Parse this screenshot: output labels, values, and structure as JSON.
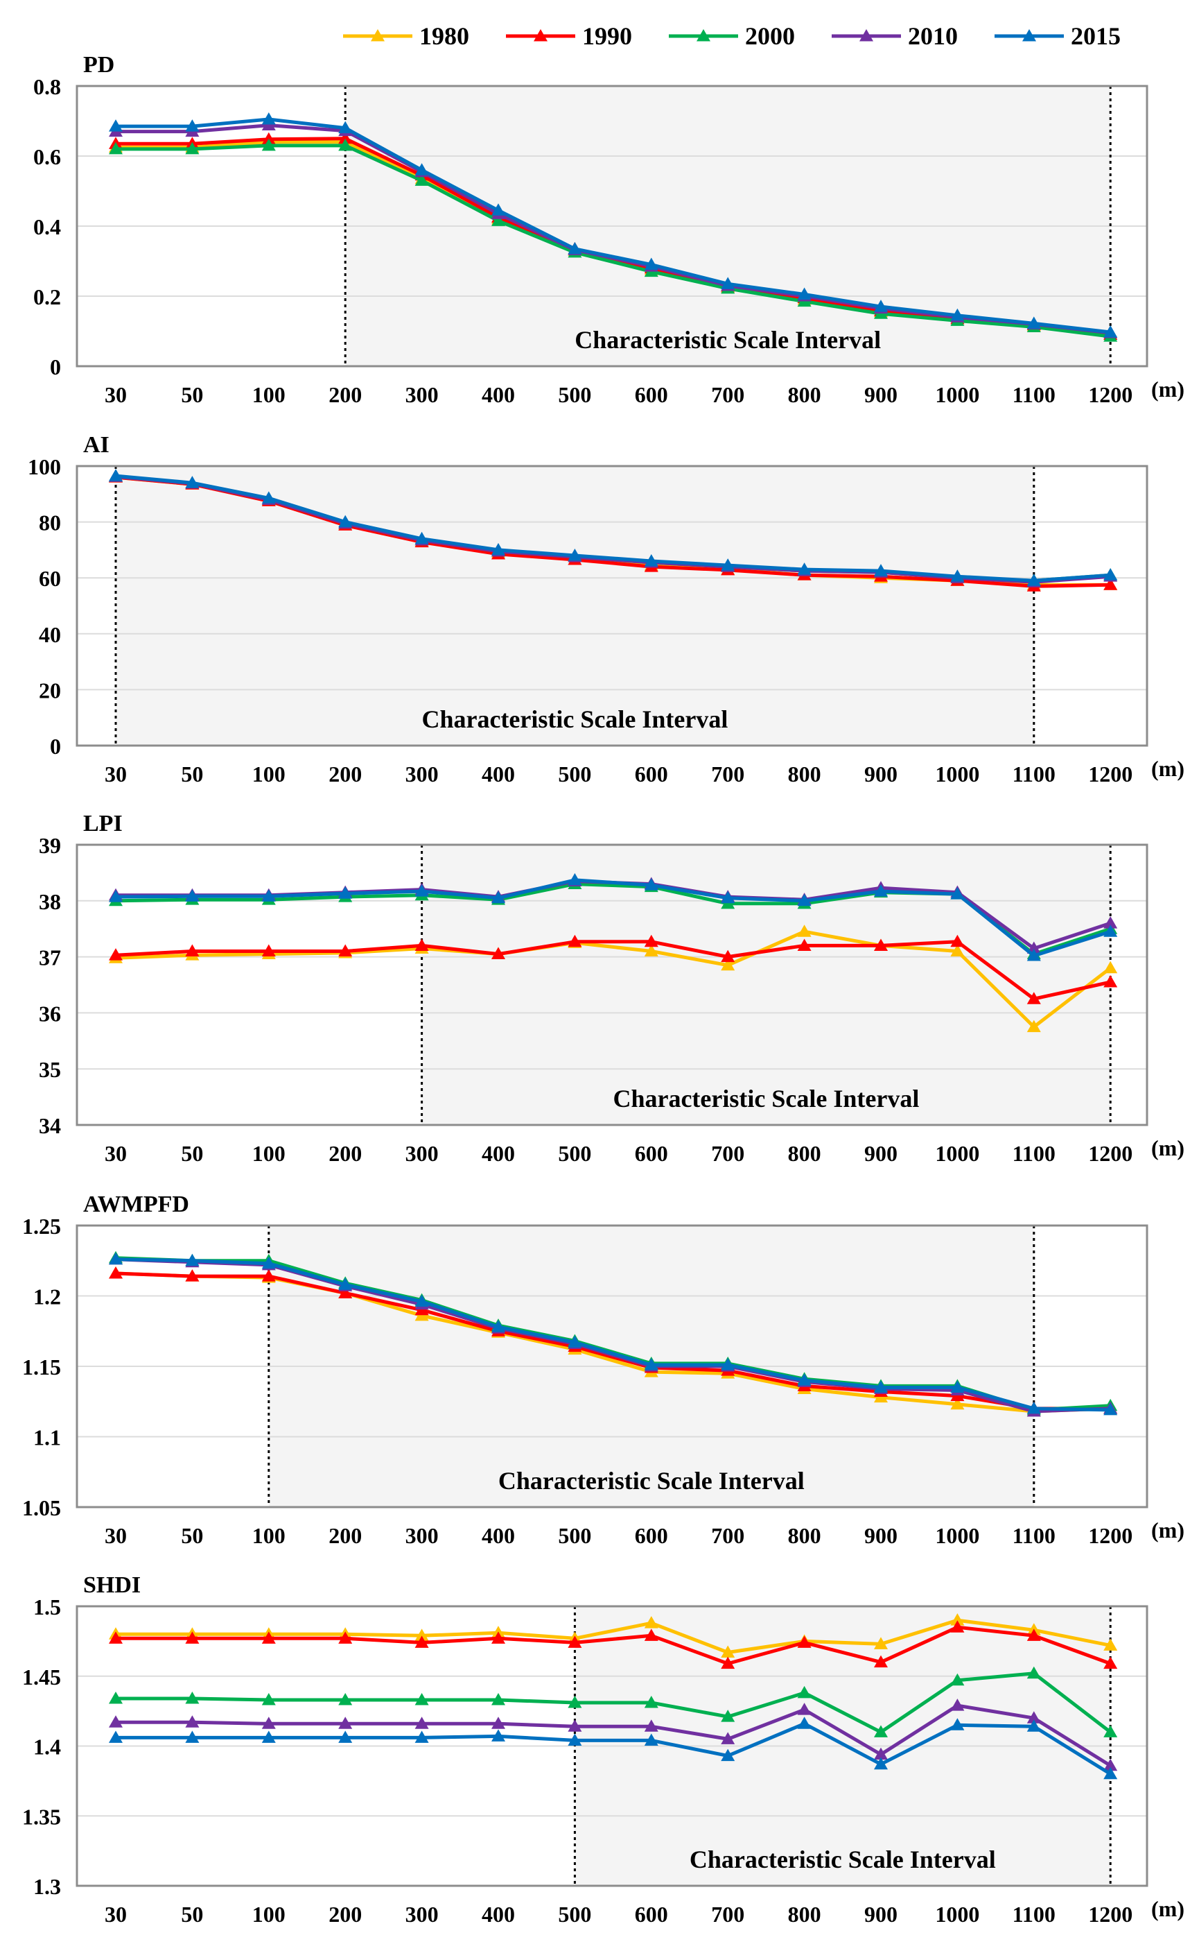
{
  "legend": [
    {
      "name": "1980",
      "color": "#ffc000"
    },
    {
      "name": "1990",
      "color": "#ff0000"
    },
    {
      "name": "2000",
      "color": "#00b050"
    },
    {
      "name": "2010",
      "color": "#7030a0"
    },
    {
      "name": "2015",
      "color": "#0070c0"
    }
  ],
  "chart_data": [
    {
      "type": "line",
      "title": "PD",
      "xunit": "(m)",
      "categories": [
        "30",
        "50",
        "100",
        "200",
        "300",
        "400",
        "500",
        "600",
        "700",
        "800",
        "900",
        "1000",
        "1100",
        "1200"
      ],
      "ylim": [
        0,
        0.8
      ],
      "yticks": [
        0,
        0.2,
        0.4,
        0.6,
        0.8
      ],
      "ytick_labels": [
        "0",
        "0.2",
        "0.4",
        "0.6",
        "0.8"
      ],
      "interval": {
        "label": "Characteristic Scale Interval",
        "start": "200",
        "end": "1200"
      },
      "series": [
        {
          "name": "1980",
          "values": [
            0.625,
            0.625,
            0.64,
            0.64,
            0.535,
            0.42,
            0.33,
            0.275,
            0.225,
            0.19,
            0.155,
            0.135,
            0.115,
            0.09
          ]
        },
        {
          "name": "1990",
          "values": [
            0.635,
            0.635,
            0.648,
            0.65,
            0.545,
            0.425,
            0.335,
            0.28,
            0.228,
            0.195,
            0.158,
            0.135,
            0.118,
            0.09
          ]
        },
        {
          "name": "2000",
          "values": [
            0.62,
            0.62,
            0.63,
            0.63,
            0.53,
            0.415,
            0.325,
            0.27,
            0.222,
            0.185,
            0.15,
            0.13,
            0.112,
            0.085
          ]
        },
        {
          "name": "2010",
          "values": [
            0.67,
            0.67,
            0.688,
            0.672,
            0.555,
            0.435,
            0.332,
            0.285,
            0.23,
            0.2,
            0.165,
            0.14,
            0.12,
            0.095
          ]
        },
        {
          "name": "2015",
          "values": [
            0.685,
            0.685,
            0.705,
            0.68,
            0.56,
            0.445,
            0.335,
            0.29,
            0.235,
            0.205,
            0.17,
            0.145,
            0.122,
            0.097
          ]
        }
      ]
    },
    {
      "type": "line",
      "title": "AI",
      "xunit": "(m)",
      "categories": [
        "30",
        "50",
        "100",
        "200",
        "300",
        "400",
        "500",
        "600",
        "700",
        "800",
        "900",
        "1000",
        "1100",
        "1200"
      ],
      "ylim": [
        0,
        100
      ],
      "yticks": [
        0,
        20,
        40,
        60,
        80,
        100
      ],
      "ytick_labels": [
        "0",
        "20",
        "40",
        "60",
        "80",
        "100"
      ],
      "interval": {
        "label": "Characteristic Scale Interval",
        "start": "30",
        "end": "1100"
      },
      "series": [
        {
          "name": "1980",
          "values": [
            96,
            93.5,
            87.8,
            79,
            73,
            69,
            66.5,
            64.5,
            63,
            61,
            60,
            59,
            57.5,
            57.5
          ]
        },
        {
          "name": "1990",
          "values": [
            96,
            93.5,
            87.5,
            78.8,
            72.8,
            68.5,
            66.5,
            64,
            62.8,
            61,
            60.5,
            59,
            57,
            57.5
          ]
        },
        {
          "name": "2000",
          "values": [
            96.2,
            93.8,
            88,
            79.5,
            73.5,
            69.5,
            67.5,
            65.5,
            64,
            62.5,
            62,
            60,
            59,
            61
          ]
        },
        {
          "name": "2010",
          "values": [
            96.2,
            93.8,
            88,
            79.5,
            73.5,
            69.5,
            67.5,
            65.5,
            64,
            62.5,
            62,
            60,
            58.5,
            60.5
          ]
        },
        {
          "name": "2015",
          "values": [
            96.5,
            94,
            88.5,
            80,
            74,
            70,
            68,
            66,
            64.5,
            63,
            62.5,
            60.5,
            59,
            61
          ]
        }
      ]
    },
    {
      "type": "line",
      "title": "LPI",
      "xunit": "(m)",
      "categories": [
        "30",
        "50",
        "100",
        "200",
        "300",
        "400",
        "500",
        "600",
        "700",
        "800",
        "900",
        "1000",
        "1100",
        "1200"
      ],
      "ylim": [
        34,
        39
      ],
      "yticks": [
        34,
        35,
        36,
        37,
        38,
        39
      ],
      "ytick_labels": [
        "34",
        "35",
        "36",
        "37",
        "38",
        "39"
      ],
      "interval": {
        "label": "Characteristic Scale Interval",
        "start": "300",
        "end": "1200"
      },
      "series": [
        {
          "name": "1980",
          "values": [
            36.98,
            37.03,
            37.05,
            37.07,
            37.15,
            37.05,
            37.25,
            37.1,
            36.85,
            37.45,
            37.2,
            37.1,
            35.75,
            36.8
          ]
        },
        {
          "name": "1990",
          "values": [
            37.03,
            37.1,
            37.1,
            37.1,
            37.2,
            37.05,
            37.27,
            37.27,
            37,
            37.2,
            37.2,
            37.27,
            36.25,
            36.55
          ]
        },
        {
          "name": "2000",
          "values": [
            38,
            38.02,
            38.02,
            38.07,
            38.1,
            38.02,
            38.3,
            38.25,
            37.95,
            37.95,
            38.15,
            38.12,
            37.05,
            37.5
          ]
        },
        {
          "name": "2010",
          "values": [
            38.1,
            38.1,
            38.1,
            38.15,
            38.2,
            38.07,
            38.35,
            38.3,
            38.07,
            38.02,
            38.23,
            38.15,
            37.15,
            37.6
          ]
        },
        {
          "name": "2015",
          "values": [
            38.07,
            38.08,
            38.08,
            38.13,
            38.17,
            38.05,
            38.37,
            38.28,
            38.05,
            38,
            38.17,
            38.12,
            37.02,
            37.45
          ]
        }
      ]
    },
    {
      "type": "line",
      "title": "AWMPFD",
      "xunit": "(m)",
      "categories": [
        "30",
        "50",
        "100",
        "200",
        "300",
        "400",
        "500",
        "600",
        "700",
        "800",
        "900",
        "1000",
        "1100",
        "1200"
      ],
      "ylim": [
        1.05,
        1.25
      ],
      "yticks": [
        1.05,
        1.1,
        1.15,
        1.2,
        1.25
      ],
      "ytick_labels": [
        "1.05",
        "1.1",
        "1.15",
        "1.2",
        "1.25"
      ],
      "interval": {
        "label": "Characteristic Scale Interval",
        "start": "100",
        "end": "1100"
      },
      "series": [
        {
          "name": "1980",
          "values": [
            1.216,
            1.214,
            1.213,
            1.202,
            1.186,
            1.174,
            1.162,
            1.146,
            1.145,
            1.134,
            1.128,
            1.123,
            1.118,
            1.12
          ]
        },
        {
          "name": "1990",
          "values": [
            1.216,
            1.214,
            1.214,
            1.202,
            1.19,
            1.175,
            1.164,
            1.149,
            1.147,
            1.136,
            1.132,
            1.129,
            1.12,
            1.12
          ]
        },
        {
          "name": "2000",
          "values": [
            1.227,
            1.225,
            1.225,
            1.209,
            1.197,
            1.179,
            1.168,
            1.152,
            1.152,
            1.141,
            1.136,
            1.136,
            1.119,
            1.122
          ]
        },
        {
          "name": "2010",
          "values": [
            1.226,
            1.224,
            1.222,
            1.207,
            1.194,
            1.177,
            1.166,
            1.15,
            1.15,
            1.139,
            1.134,
            1.133,
            1.118,
            1.12
          ]
        },
        {
          "name": "2015",
          "values": [
            1.226,
            1.225,
            1.223,
            1.208,
            1.196,
            1.178,
            1.167,
            1.151,
            1.151,
            1.14,
            1.135,
            1.135,
            1.12,
            1.119
          ]
        }
      ]
    },
    {
      "type": "line",
      "title": "SHDI",
      "xunit": "(m)",
      "categories": [
        "30",
        "50",
        "100",
        "200",
        "300",
        "400",
        "500",
        "600",
        "700",
        "800",
        "900",
        "1000",
        "1100",
        "1200"
      ],
      "ylim": [
        1.3,
        1.5
      ],
      "yticks": [
        1.3,
        1.35,
        1.4,
        1.45,
        1.5
      ],
      "ytick_labels": [
        "1.3",
        "1.35",
        "1.4",
        "1.45",
        "1.5"
      ],
      "interval": {
        "label": "Characteristic Scale Interval",
        "start": "500",
        "end": "1200"
      },
      "series": [
        {
          "name": "1980",
          "values": [
            1.48,
            1.48,
            1.48,
            1.48,
            1.479,
            1.481,
            1.477,
            1.488,
            1.467,
            1.475,
            1.473,
            1.49,
            1.483,
            1.472
          ]
        },
        {
          "name": "1990",
          "values": [
            1.477,
            1.477,
            1.477,
            1.477,
            1.474,
            1.477,
            1.474,
            1.479,
            1.459,
            1.474,
            1.46,
            1.485,
            1.479,
            1.459
          ]
        },
        {
          "name": "2000",
          "values": [
            1.434,
            1.434,
            1.433,
            1.433,
            1.433,
            1.433,
            1.431,
            1.431,
            1.421,
            1.438,
            1.41,
            1.447,
            1.452,
            1.41
          ]
        },
        {
          "name": "2010",
          "values": [
            1.417,
            1.417,
            1.416,
            1.416,
            1.416,
            1.416,
            1.414,
            1.414,
            1.405,
            1.426,
            1.394,
            1.429,
            1.42,
            1.386
          ]
        },
        {
          "name": "2015",
          "values": [
            1.406,
            1.406,
            1.406,
            1.406,
            1.406,
            1.407,
            1.404,
            1.404,
            1.393,
            1.416,
            1.387,
            1.415,
            1.414,
            1.38
          ]
        }
      ]
    }
  ]
}
